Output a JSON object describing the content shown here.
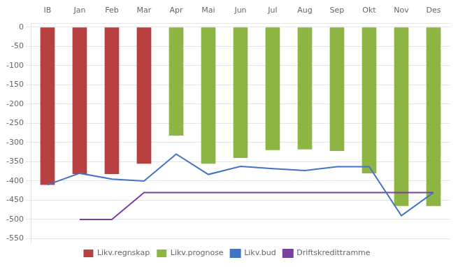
{
  "chart_data": {
    "type": "bar",
    "categories": [
      "IB",
      "Jan",
      "Feb",
      "Mar",
      "Apr",
      "Mai",
      "Jun",
      "Jul",
      "Aug",
      "Sep",
      "Okt",
      "Nov",
      "Des"
    ],
    "series": [
      {
        "name": "Likv.regnskap",
        "type": "bar",
        "color": "#b94040",
        "values": [
          -410,
          -382,
          -382,
          -355,
          null,
          null,
          null,
          null,
          null,
          null,
          null,
          null,
          null
        ]
      },
      {
        "name": "Likv.prognose",
        "type": "bar",
        "color": "#8db544",
        "values": [
          null,
          null,
          null,
          null,
          -282,
          -355,
          -340,
          -320,
          -318,
          -322,
          -380,
          -465,
          -465
        ]
      },
      {
        "name": "Likv.bud",
        "type": "line",
        "color": "#4472c4",
        "values": [
          -410,
          -380,
          -395,
          -400,
          -330,
          -383,
          -362,
          -368,
          -373,
          -363,
          -363,
          -490,
          -430
        ]
      },
      {
        "name": "Driftskredittramme",
        "type": "line",
        "color": "#7b3fa0",
        "values": [
          null,
          -500,
          -500,
          -430,
          -430,
          -430,
          -430,
          -430,
          -430,
          -430,
          -430,
          -430,
          -430
        ]
      }
    ],
    "ylim": [
      -560,
      10
    ],
    "yticks": [
      0,
      -50,
      -100,
      -150,
      -200,
      -250,
      -300,
      -350,
      -400,
      -450,
      -500,
      -550
    ],
    "grid": true,
    "legend": "bottom"
  }
}
